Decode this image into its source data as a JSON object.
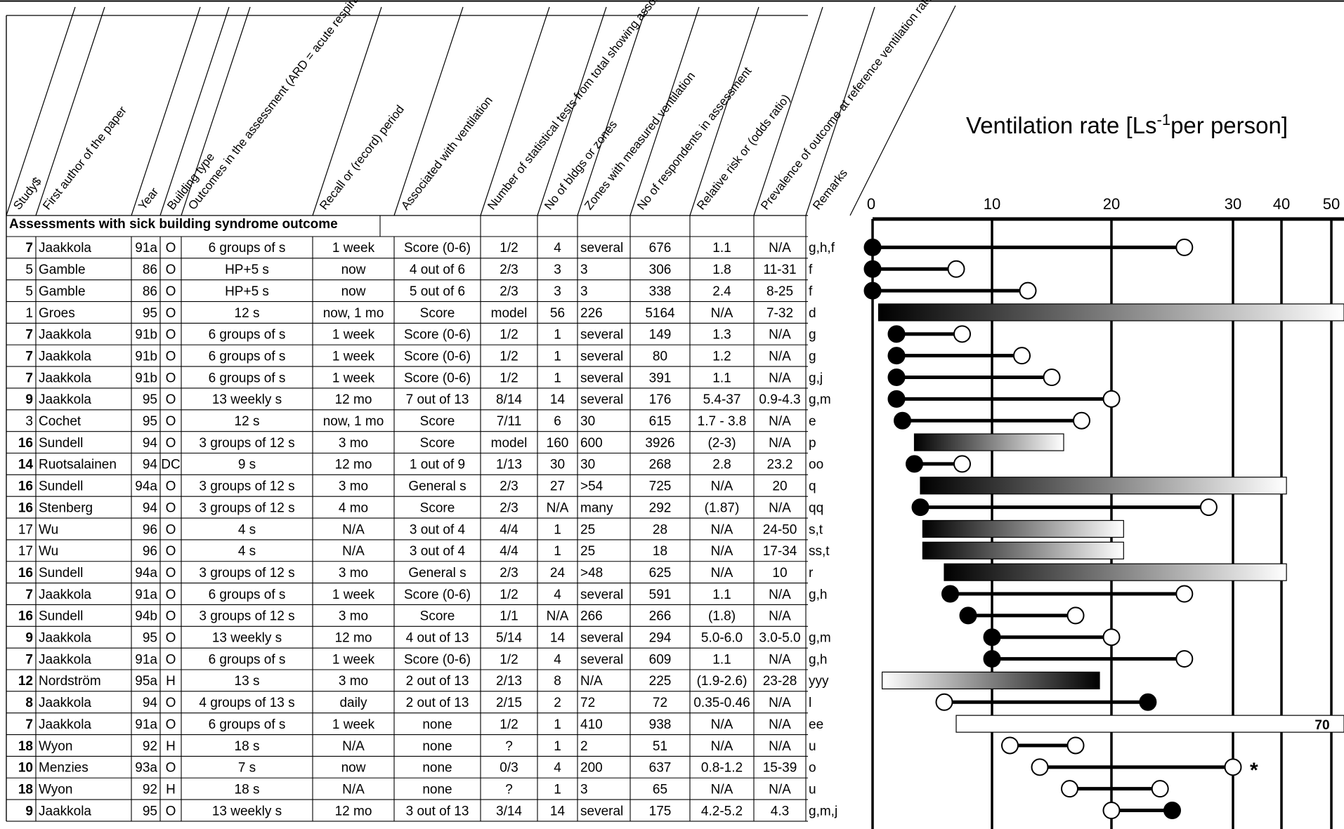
{
  "header": {
    "top_title_fragment": "",
    "columns": [
      "Study$",
      "First author of the paper",
      "Year",
      "Building type",
      "Outcomes in the assessment (ARD = acute respiratory disease, s = SBS symptoms, HP = hypersensitivity pneumonitis)",
      "Recall or (record) period",
      "Associated with ventilation",
      "Number of statistical tests from total showing association with ventilation",
      "No of bldgs or zones",
      "Zones with measured ventilation",
      "No of respondents in assessment",
      "Relative risk or (odds ratio)",
      "Prevalence of outcome at reference ventilation rate, %",
      "Remarks"
    ]
  },
  "section_title": "Assessments with sick building syndrome outcome",
  "rows": [
    {
      "study": "7",
      "bold": true,
      "author": "Jaakkola",
      "year": "91a",
      "btype": "O",
      "outcome": "6 groups of s",
      "recall": "1 week",
      "assoc": "Score (0-6)",
      "ntests": "1/2",
      "nbldg": "4",
      "zones": "several",
      "nresp": "676",
      "rr": "1.1",
      "prev": "N/A",
      "remarks": "g,h,f"
    },
    {
      "study": "5",
      "bold": false,
      "author": "Gamble",
      "year": "86",
      "btype": "O",
      "outcome": "HP+5 s",
      "recall": "now",
      "assoc": "4 out of 6",
      "ntests": "2/3",
      "nbldg": "3",
      "zones": "3",
      "nresp": "306",
      "rr": "1.8",
      "prev": "11-31",
      "remarks": "f"
    },
    {
      "study": "5",
      "bold": false,
      "author": "Gamble",
      "year": "86",
      "btype": "O",
      "outcome": "HP+5 s",
      "recall": "now",
      "assoc": "5 out of 6",
      "ntests": "2/3",
      "nbldg": "3",
      "zones": "3",
      "nresp": "338",
      "rr": "2.4",
      "prev": "8-25",
      "remarks": "f"
    },
    {
      "study": "1",
      "bold": false,
      "author": "Groes",
      "year": "95",
      "btype": "O",
      "outcome": "12 s",
      "recall": "now, 1 mo",
      "assoc": "Score",
      "ntests": "model",
      "nbldg": "56",
      "zones": "226",
      "nresp": "5164",
      "rr": "N/A",
      "prev": "7-32",
      "remarks": "d"
    },
    {
      "study": "7",
      "bold": true,
      "author": "Jaakkola",
      "year": "91b",
      "btype": "O",
      "outcome": "6 groups of s",
      "recall": "1 week",
      "assoc": "Score (0-6)",
      "ntests": "1/2",
      "nbldg": "1",
      "zones": "several",
      "nresp": "149",
      "rr": "1.3",
      "prev": "N/A",
      "remarks": "g"
    },
    {
      "study": "7",
      "bold": true,
      "author": "Jaakkola",
      "year": "91b",
      "btype": "O",
      "outcome": "6 groups of s",
      "recall": "1 week",
      "assoc": "Score (0-6)",
      "ntests": "1/2",
      "nbldg": "1",
      "zones": "several",
      "nresp": "80",
      "rr": "1.2",
      "prev": "N/A",
      "remarks": "g"
    },
    {
      "study": "7",
      "bold": true,
      "author": "Jaakkola",
      "year": "91b",
      "btype": "O",
      "outcome": "6 groups of s",
      "recall": "1 week",
      "assoc": "Score (0-6)",
      "ntests": "1/2",
      "nbldg": "1",
      "zones": "several",
      "nresp": "391",
      "rr": "1.1",
      "prev": "N/A",
      "remarks": "g,j"
    },
    {
      "study": "9",
      "bold": true,
      "author": "Jaakkola",
      "year": "95",
      "btype": "O",
      "outcome": "13 weekly s",
      "recall": "12 mo",
      "assoc": "7 out of 13",
      "ntests": "8/14",
      "nbldg": "14",
      "zones": "several",
      "nresp": "176",
      "rr": "5.4-37",
      "prev": "0.9-4.3",
      "remarks": "g,m"
    },
    {
      "study": "3",
      "bold": false,
      "author": "Cochet",
      "year": "95",
      "btype": "O",
      "outcome": "12 s",
      "recall": "now, 1 mo",
      "assoc": "Score",
      "ntests": "7/11",
      "nbldg": "6",
      "zones": "30",
      "nresp": "615",
      "rr": "1.7 - 3.8",
      "prev": "N/A",
      "remarks": "e"
    },
    {
      "study": "16",
      "bold": true,
      "author": "Sundell",
      "year": "94",
      "btype": "O",
      "outcome": "3 groups of 12 s",
      "recall": "3 mo",
      "assoc": "Score",
      "ntests": "model",
      "nbldg": "160",
      "zones": "600",
      "nresp": "3926",
      "rr": "(2-3)",
      "prev": "N/A",
      "remarks": "p"
    },
    {
      "study": "14",
      "bold": true,
      "author": "Ruotsalainen",
      "year": "94",
      "btype": "DC",
      "outcome": "9 s",
      "recall": "12 mo",
      "assoc": "1 out of 9",
      "ntests": "1/13",
      "nbldg": "30",
      "zones": "30",
      "nresp": "268",
      "rr": "2.8",
      "prev": "23.2",
      "remarks": "oo"
    },
    {
      "study": "16",
      "bold": true,
      "author": "Sundell",
      "year": "94a",
      "btype": "O",
      "outcome": "3 groups of 12 s",
      "recall": "3 mo",
      "assoc": "General s",
      "ntests": "2/3",
      "nbldg": "27",
      "zones": ">54",
      "nresp": "725",
      "rr": "N/A",
      "prev": "20",
      "remarks": "q"
    },
    {
      "study": "16",
      "bold": true,
      "author": "Stenberg",
      "year": "94",
      "btype": "O",
      "outcome": "3 groups of 12 s",
      "recall": "4 mo",
      "assoc": "Score",
      "ntests": "2/3",
      "nbldg": "N/A",
      "zones": "many",
      "nresp": "292",
      "rr": "(1.87)",
      "prev": "N/A",
      "remarks": "qq"
    },
    {
      "study": "17",
      "bold": false,
      "author": "Wu",
      "year": "96",
      "btype": "O",
      "outcome": "4 s",
      "recall": "N/A",
      "assoc": "3 out  of  4",
      "ntests": "4/4",
      "nbldg": "1",
      "zones": "25",
      "nresp": "28",
      "rr": "N/A",
      "prev": "24-50",
      "remarks": "s,t"
    },
    {
      "study": "17",
      "bold": false,
      "author": "Wu",
      "year": "96",
      "btype": "O",
      "outcome": "4 s",
      "recall": "N/A",
      "assoc": "3 out  of  4",
      "ntests": "4/4",
      "nbldg": "1",
      "zones": "25",
      "nresp": "18",
      "rr": "N/A",
      "prev": "17-34",
      "remarks": "ss,t"
    },
    {
      "study": "16",
      "bold": true,
      "author": "Sundell",
      "year": "94a",
      "btype": "O",
      "outcome": "3 groups of 12 s",
      "recall": "3 mo",
      "assoc": "General s",
      "ntests": "2/3",
      "nbldg": "24",
      "zones": ">48",
      "nresp": "625",
      "rr": "N/A",
      "prev": "10",
      "remarks": "r"
    },
    {
      "study": "7",
      "bold": true,
      "author": "Jaakkola",
      "year": "91a",
      "btype": "O",
      "outcome": "6 groups of s",
      "recall": "1 week",
      "assoc": "Score (0-6)",
      "ntests": "1/2",
      "nbldg": "4",
      "zones": "several",
      "nresp": "591",
      "rr": "1.1",
      "prev": "N/A",
      "remarks": "g,h"
    },
    {
      "study": "16",
      "bold": true,
      "author": "Sundell",
      "year": "94b",
      "btype": "O",
      "outcome": "3 groups of 12 s",
      "recall": "3 mo",
      "assoc": "Score",
      "ntests": "1/1",
      "nbldg": "N/A",
      "zones": "266",
      "nresp": "266",
      "rr": "(1.8)",
      "prev": "N/A",
      "remarks": ""
    },
    {
      "study": "9",
      "bold": true,
      "author": "Jaakkola",
      "year": "95",
      "btype": "O",
      "outcome": "13 weekly s",
      "recall": "12 mo",
      "assoc": "4 out of 13",
      "ntests": "5/14",
      "nbldg": "14",
      "zones": "several",
      "nresp": "294",
      "rr": "5.0-6.0",
      "prev": "3.0-5.0",
      "remarks": "g,m"
    },
    {
      "study": "7",
      "bold": true,
      "author": "Jaakkola",
      "year": "91a",
      "btype": "O",
      "outcome": "6 groups of s",
      "recall": "1 week",
      "assoc": "Score (0-6)",
      "ntests": "1/2",
      "nbldg": "4",
      "zones": "several",
      "nresp": "609",
      "rr": "1.1",
      "prev": "N/A",
      "remarks": "g,h"
    },
    {
      "study": "12",
      "bold": true,
      "author": "Nordström",
      "year": "95a",
      "btype": "H",
      "outcome": "13 s",
      "recall": "3 mo",
      "assoc": "2 out of 13",
      "ntests": "2/13",
      "nbldg": "8",
      "zones": "N/A",
      "nresp": "225",
      "rr": "(1.9-2.6)",
      "prev": "23-28",
      "remarks": "yyy"
    },
    {
      "study": "8",
      "bold": true,
      "author": "Jaakkola",
      "year": "94",
      "btype": "O",
      "outcome": "4 groups of 13 s",
      "recall": "daily",
      "assoc": "2 out of 13",
      "ntests": "2/15",
      "nbldg": "2",
      "zones": "72",
      "nresp": "72",
      "rr": "0.35-0.46",
      "prev": "N/A",
      "remarks": "l"
    },
    {
      "study": "7",
      "bold": true,
      "author": "Jaakkola",
      "year": "91a",
      "btype": "O",
      "outcome": "6 groups of s",
      "recall": "1 week",
      "assoc": "none",
      "ntests": "1/2",
      "nbldg": "1",
      "zones": "410",
      "nresp": "938",
      "rr": "N/A",
      "prev": "N/A",
      "remarks": "ee"
    },
    {
      "study": "18",
      "bold": true,
      "author": "Wyon",
      "year": "92",
      "btype": "H",
      "outcome": "18 s",
      "recall": "N/A",
      "assoc": "none",
      "ntests": "?",
      "nbldg": "1",
      "zones": "2",
      "nresp": "51",
      "rr": "N/A",
      "prev": "N/A",
      "remarks": "u"
    },
    {
      "study": "10",
      "bold": true,
      "author": "Menzies",
      "year": "93a",
      "btype": "O",
      "outcome": "7 s",
      "recall": "now",
      "assoc": "none",
      "ntests": "0/3",
      "nbldg": "4",
      "zones": "200",
      "nresp": "637",
      "rr": "0.8-1.2",
      "prev": "15-39",
      "remarks": "o"
    },
    {
      "study": "18",
      "bold": true,
      "author": "Wyon",
      "year": "92",
      "btype": "H",
      "outcome": "18 s",
      "recall": "N/A",
      "assoc": "none",
      "ntests": "?",
      "nbldg": "1",
      "zones": "3",
      "nresp": "65",
      "rr": "N/A",
      "prev": "N/A",
      "remarks": "u"
    },
    {
      "study": "9",
      "bold": true,
      "author": "Jaakkola",
      "year": "95",
      "btype": "O",
      "outcome": "13 weekly s",
      "recall": "12 mo",
      "assoc": "3 out of 13",
      "ntests": "3/14",
      "nbldg": "14",
      "zones": "several",
      "nresp": "175",
      "rr": "4.2-5.2",
      "prev": "4.3",
      "remarks": "g,m,j"
    }
  ],
  "chart_data": {
    "type": "range-dumbbell",
    "title": "Ventilation rate [Ls-1per person]",
    "title_parts": {
      "pre": "Ventilation rate [Ls",
      "sup": "-1",
      "post": "per person]"
    },
    "xlabel": "Ventilation rate [Ls-1per person]",
    "ticks": [
      "0",
      "10",
      "20",
      "30",
      "40",
      "50"
    ],
    "tick_values": [
      0,
      10,
      20,
      30,
      40,
      50
    ],
    "grid": true,
    "colors": {
      "line": "#000000",
      "bar_dark": "#000000",
      "bar_light": "#ffffff"
    },
    "marks": [
      {
        "type": "dumbbell",
        "a": 0,
        "a_fill": "black",
        "b": 26,
        "b_fill": "white"
      },
      {
        "type": "dumbbell",
        "a": 0,
        "a_fill": "black",
        "b": 7,
        "b_fill": "white"
      },
      {
        "type": "dumbbell",
        "a": 0,
        "a_fill": "black",
        "b": 13,
        "b_fill": "white"
      },
      {
        "type": "bar",
        "from": 0.5,
        "to": 55,
        "dir": "dark-to-light"
      },
      {
        "type": "dumbbell",
        "a": 2,
        "a_fill": "black",
        "b": 7.5,
        "b_fill": "white"
      },
      {
        "type": "dumbbell",
        "a": 2,
        "a_fill": "black",
        "b": 12.5,
        "b_fill": "white"
      },
      {
        "type": "dumbbell",
        "a": 2,
        "a_fill": "black",
        "b": 15,
        "b_fill": "white"
      },
      {
        "type": "dumbbell",
        "a": 2,
        "a_fill": "black",
        "b": 20,
        "b_fill": "white"
      },
      {
        "type": "dumbbell",
        "a": 2.5,
        "a_fill": "black",
        "b": 17.5,
        "b_fill": "white"
      },
      {
        "type": "bar",
        "from": 3.5,
        "to": 16,
        "dir": "dark-to-light"
      },
      {
        "type": "dumbbell",
        "a": 3.5,
        "a_fill": "black",
        "b": 7.5,
        "b_fill": "white"
      },
      {
        "type": "bar",
        "from": 4,
        "to": 41,
        "dir": "dark-to-light"
      },
      {
        "type": "dumbbell",
        "a": 4,
        "a_fill": "black",
        "b": 28,
        "b_fill": "white"
      },
      {
        "type": "bar",
        "from": 4.2,
        "to": 21,
        "dir": "dark-to-light"
      },
      {
        "type": "bar",
        "from": 4.2,
        "to": 21,
        "dir": "dark-to-light"
      },
      {
        "type": "bar",
        "from": 6,
        "to": 41,
        "dir": "dark-to-light"
      },
      {
        "type": "dumbbell",
        "a": 6.5,
        "a_fill": "black",
        "b": 26,
        "b_fill": "white"
      },
      {
        "type": "dumbbell",
        "a": 8,
        "a_fill": "black",
        "b": 17,
        "b_fill": "white"
      },
      {
        "type": "dumbbell",
        "a": 10,
        "a_fill": "black",
        "b": 20,
        "b_fill": "white"
      },
      {
        "type": "dumbbell",
        "a": 10,
        "a_fill": "black",
        "b": 26,
        "b_fill": "white"
      },
      {
        "type": "bar",
        "from": 0.8,
        "to": 19,
        "dir": "light-to-dark"
      },
      {
        "type": "dumbbell",
        "a": 6,
        "a_fill": "white",
        "b": 23,
        "b_fill": "black"
      },
      {
        "type": "bar",
        "from": 7,
        "to": 55,
        "dir": "white",
        "label": "70"
      },
      {
        "type": "dumbbell",
        "a": 11.5,
        "a_fill": "white",
        "b": 17,
        "b_fill": "white"
      },
      {
        "type": "dumbbell",
        "a": 14,
        "a_fill": "white",
        "b": 30,
        "b_fill": "white",
        "marker": "*"
      },
      {
        "type": "dumbbell",
        "a": 16.5,
        "a_fill": "white",
        "b": 24,
        "b_fill": "white"
      },
      {
        "type": "dumbbell",
        "a": 20,
        "a_fill": "white",
        "b": 25,
        "b_fill": "black"
      }
    ]
  }
}
